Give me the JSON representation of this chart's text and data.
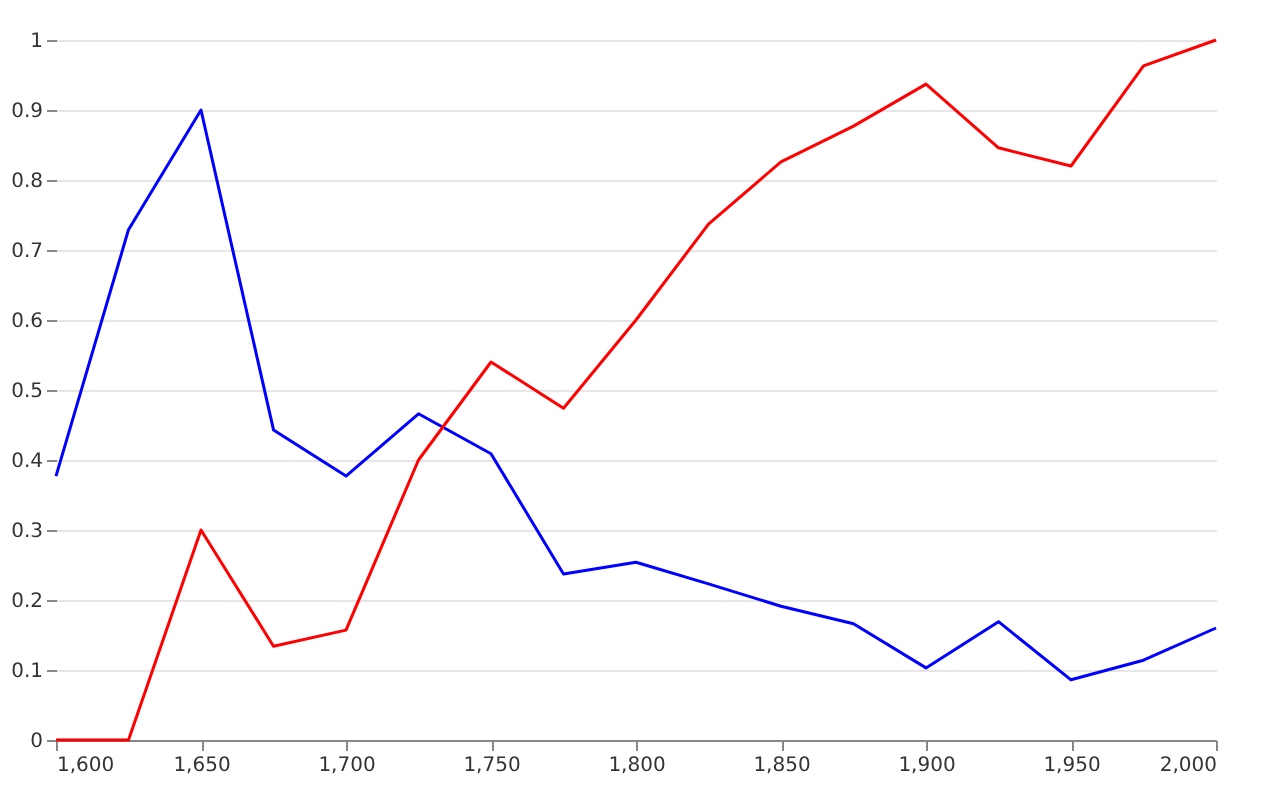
{
  "chart_data": {
    "type": "line",
    "x": [
      1600,
      1625,
      1650,
      1675,
      1700,
      1725,
      1750,
      1775,
      1800,
      1825,
      1850,
      1875,
      1900,
      1925,
      1950,
      1975,
      2000
    ],
    "series": [
      {
        "color": "#0000ff",
        "values": [
          0.377,
          0.729,
          0.9,
          0.443,
          0.377,
          0.466,
          0.409,
          0.237,
          0.254,
          0.223,
          0.191,
          0.166,
          0.103,
          0.169,
          0.086,
          0.114,
          0.16
        ]
      },
      {
        "color": "#ff0000",
        "values": [
          0,
          0,
          0.3,
          0.134,
          0.157,
          0.4,
          0.54,
          0.474,
          0.6,
          0.737,
          0.826,
          0.877,
          0.937,
          0.846,
          0.82,
          0.963,
          1.0
        ]
      }
    ],
    "xlim": [
      1600,
      2000
    ],
    "xticks": [
      {
        "value": 1600,
        "label": "1,600"
      },
      {
        "value": 1650,
        "label": "1,650"
      },
      {
        "value": 1700,
        "label": "1,700"
      },
      {
        "value": 1750,
        "label": "1,750"
      },
      {
        "value": 1800,
        "label": "1,800"
      },
      {
        "value": 1850,
        "label": "1,850"
      },
      {
        "value": 1900,
        "label": "1,900"
      },
      {
        "value": 1950,
        "label": "1,950"
      },
      {
        "value": 2000,
        "label": "2,000"
      }
    ],
    "ylim": [
      0,
      1
    ],
    "yticks": [
      0,
      0.1,
      0.2,
      0.3,
      0.4,
      0.5,
      0.6,
      0.7,
      0.8,
      0.9,
      1
    ],
    "grid": "y",
    "marker": "none",
    "line_style": "solid"
  }
}
